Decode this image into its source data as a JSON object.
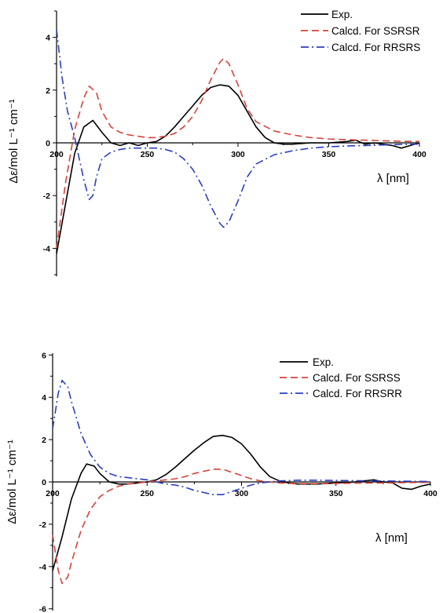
{
  "chart_data": [
    {
      "type": "line",
      "xlabel": "λ [nm]",
      "ylabel": "Δε/mol L⁻¹ cm⁻¹",
      "xlim": [
        200,
        400
      ],
      "ylim": [
        -5,
        5
      ],
      "xticks": [
        200,
        250,
        300,
        350,
        400
      ],
      "yticks": [
        -4,
        -2,
        0,
        2,
        4
      ],
      "legend_position": "top-right",
      "series": [
        {
          "name": "Exp.",
          "color": "#000000",
          "style": "solid",
          "x": [
            200,
            205,
            210,
            215,
            220,
            225,
            230,
            235,
            240,
            245,
            250,
            255,
            260,
            265,
            270,
            275,
            280,
            285,
            290,
            295,
            300,
            305,
            310,
            315,
            320,
            325,
            330,
            340,
            350,
            360,
            365,
            370,
            375,
            380,
            385,
            390,
            395,
            400
          ],
          "y": [
            -4.2,
            -2.3,
            -0.4,
            0.6,
            0.85,
            0.4,
            0.0,
            -0.1,
            0.0,
            -0.1,
            0.0,
            0.05,
            0.25,
            0.6,
            1.0,
            1.4,
            1.8,
            2.1,
            2.2,
            2.15,
            1.8,
            1.2,
            0.6,
            0.2,
            0.0,
            -0.05,
            -0.05,
            0.0,
            0.0,
            0.05,
            0.1,
            -0.05,
            0.0,
            -0.05,
            -0.1,
            -0.2,
            -0.1,
            0.0
          ]
        },
        {
          "name": "Calcd. For  SSRSR",
          "color": "#d9423a",
          "style": "dashed",
          "x": [
            200,
            205,
            210,
            215,
            218,
            222,
            225,
            230,
            235,
            240,
            245,
            250,
            255,
            260,
            265,
            270,
            275,
            280,
            285,
            290,
            292,
            295,
            300,
            305,
            310,
            320,
            330,
            340,
            350,
            360,
            370,
            380,
            390,
            400
          ],
          "y": [
            -4.0,
            -1.5,
            0.5,
            1.7,
            2.15,
            1.9,
            1.2,
            0.6,
            0.4,
            0.3,
            0.25,
            0.2,
            0.2,
            0.25,
            0.35,
            0.6,
            1.0,
            1.6,
            2.4,
            3.05,
            3.2,
            3.0,
            2.2,
            1.3,
            0.8,
            0.45,
            0.3,
            0.2,
            0.15,
            0.12,
            0.1,
            0.08,
            0.06,
            0.05
          ]
        },
        {
          "name": "Calcd. For  RRSRS",
          "color": "#2a3fc4",
          "style": "dashdot",
          "x": [
            200,
            203,
            206,
            210,
            215,
            218,
            220,
            222,
            225,
            230,
            235,
            240,
            245,
            250,
            255,
            260,
            265,
            270,
            275,
            280,
            285,
            290,
            292,
            295,
            300,
            305,
            310,
            320,
            330,
            340,
            350,
            360,
            370,
            380,
            390,
            400
          ],
          "y": [
            4.3,
            2.5,
            1.2,
            0.2,
            -1.4,
            -2.15,
            -2.0,
            -1.3,
            -0.6,
            -0.35,
            -0.25,
            -0.2,
            -0.2,
            -0.2,
            -0.2,
            -0.25,
            -0.35,
            -0.6,
            -1.0,
            -1.6,
            -2.4,
            -3.05,
            -3.2,
            -3.0,
            -2.2,
            -1.3,
            -0.8,
            -0.45,
            -0.3,
            -0.2,
            -0.15,
            -0.12,
            -0.1,
            -0.08,
            -0.06,
            -0.05
          ]
        }
      ]
    },
    {
      "type": "line",
      "xlabel": "λ [nm]",
      "ylabel": "Δε/mol L⁻¹ cm⁻¹",
      "xlim": [
        200,
        400
      ],
      "ylim": [
        -6,
        6
      ],
      "xticks": [
        200,
        250,
        300,
        350,
        400
      ],
      "yticks": [
        -6,
        -4,
        -2,
        0,
        2,
        4,
        6
      ],
      "legend_position": "top-right",
      "series": [
        {
          "name": "Exp.",
          "color": "#000000",
          "style": "solid",
          "x": [
            200,
            205,
            210,
            215,
            218,
            222,
            225,
            230,
            235,
            240,
            245,
            250,
            255,
            260,
            265,
            270,
            275,
            280,
            285,
            290,
            295,
            300,
            305,
            310,
            315,
            320,
            325,
            330,
            340,
            350,
            360,
            365,
            370,
            375,
            380,
            385,
            390,
            395,
            400
          ],
          "y": [
            -4.2,
            -2.6,
            -0.8,
            0.4,
            0.85,
            0.75,
            0.4,
            0.0,
            -0.1,
            -0.1,
            -0.05,
            0.0,
            0.1,
            0.35,
            0.7,
            1.1,
            1.5,
            1.85,
            2.15,
            2.2,
            2.1,
            1.8,
            1.3,
            0.7,
            0.25,
            0.05,
            -0.05,
            -0.1,
            -0.1,
            -0.05,
            0.0,
            0.05,
            0.1,
            0.0,
            -0.05,
            -0.3,
            -0.35,
            -0.2,
            -0.1
          ]
        },
        {
          "name": "Calcd. For  SSRSS",
          "color": "#d9423a",
          "style": "dashed",
          "x": [
            200,
            203,
            205,
            208,
            210,
            215,
            220,
            225,
            230,
            235,
            240,
            245,
            250,
            255,
            260,
            265,
            270,
            275,
            280,
            285,
            290,
            295,
            300,
            305,
            310,
            320,
            330,
            340,
            350,
            360,
            370,
            380,
            390,
            400
          ],
          "y": [
            -2.5,
            -4.2,
            -4.8,
            -4.5,
            -3.8,
            -2.3,
            -1.3,
            -0.7,
            -0.4,
            -0.2,
            -0.1,
            -0.05,
            0.0,
            0.05,
            0.1,
            0.15,
            0.25,
            0.4,
            0.5,
            0.6,
            0.6,
            0.45,
            0.3,
            0.15,
            0.05,
            -0.05,
            -0.08,
            -0.08,
            -0.07,
            -0.06,
            -0.05,
            -0.04,
            -0.03,
            -0.02
          ]
        },
        {
          "name": "Calcd. For  RRSRR",
          "color": "#2a3fc4",
          "style": "dashdot",
          "x": [
            200,
            203,
            205,
            208,
            210,
            215,
            220,
            225,
            230,
            235,
            240,
            245,
            250,
            255,
            260,
            265,
            270,
            275,
            280,
            285,
            290,
            295,
            300,
            305,
            310,
            320,
            330,
            340,
            350,
            360,
            370,
            380,
            390,
            400
          ],
          "y": [
            2.5,
            4.2,
            4.8,
            4.5,
            3.8,
            2.3,
            1.3,
            0.7,
            0.4,
            0.25,
            0.2,
            0.15,
            0.1,
            0.0,
            -0.1,
            -0.15,
            -0.25,
            -0.4,
            -0.5,
            -0.6,
            -0.6,
            -0.45,
            -0.3,
            -0.15,
            -0.05,
            0.05,
            0.08,
            0.08,
            0.07,
            0.06,
            0.05,
            0.04,
            0.03,
            0.02
          ]
        }
      ]
    }
  ]
}
